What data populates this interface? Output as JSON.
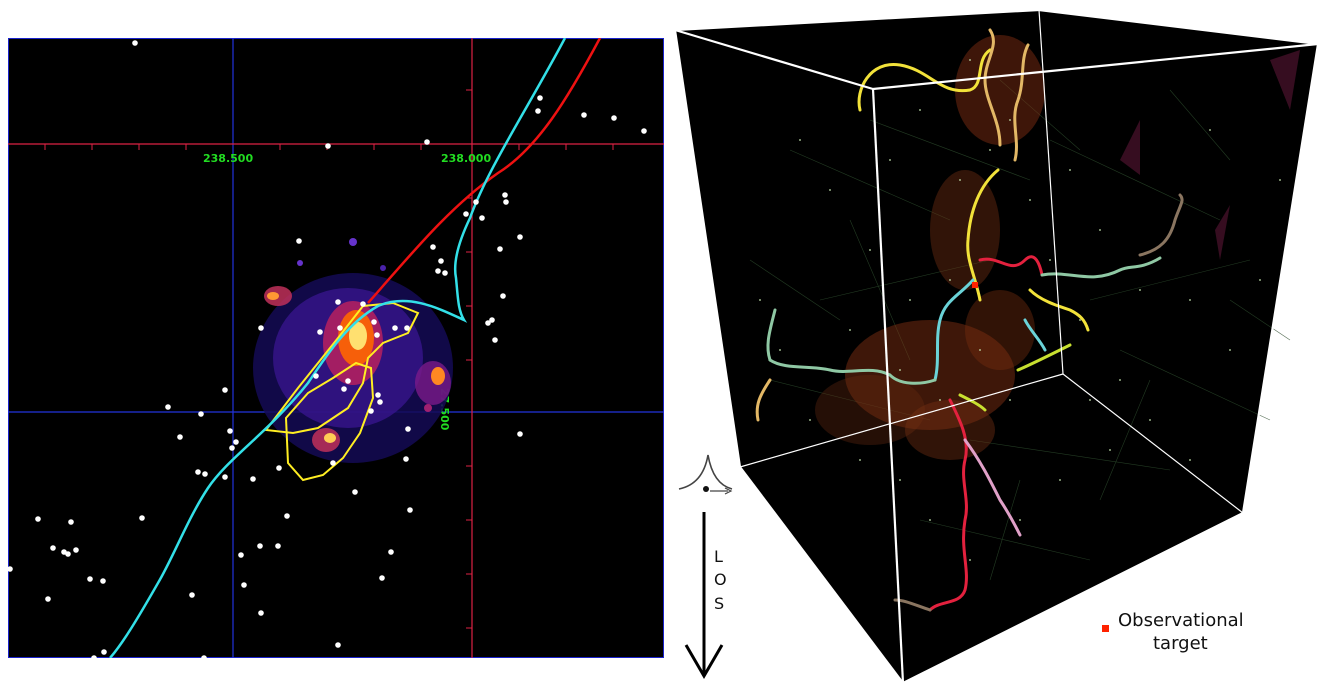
{
  "sky_map": {
    "ra_labels": [
      "238.500",
      "238.000"
    ],
    "dec_labels": [
      "27.500"
    ],
    "colors": {
      "background": "#000000",
      "ra_grid": "#2233dd",
      "dec_grid": "#dd2244",
      "coord_text": "#22dd22",
      "cyan_track": "#33e0e8",
      "red_track": "#ee1111",
      "contour": "#ffee22",
      "points": "#ffffff"
    }
  },
  "cube_view": {
    "los_letters": [
      "L",
      "O",
      "S"
    ],
    "legend": {
      "line1": "Observational",
      "line2": "target",
      "marker_color": "#ff2200"
    },
    "filament_colors": [
      "#f2e23a",
      "#e3b866",
      "#8fc8a4",
      "#6ad3d8",
      "#e3213e",
      "#e0a0c8",
      "#c8e030",
      "#8a7560"
    ]
  }
}
